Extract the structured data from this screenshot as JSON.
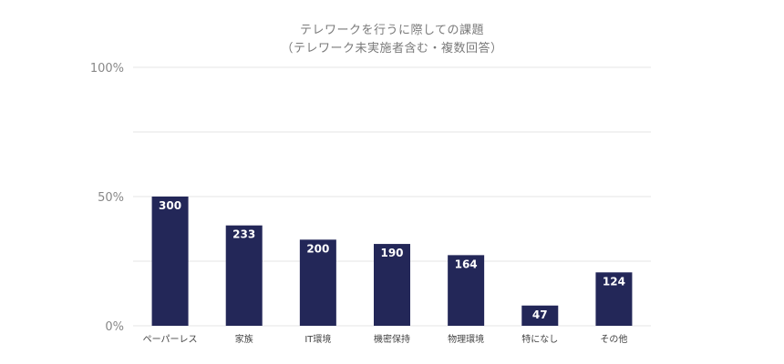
{
  "chart_data": {
    "type": "bar",
    "title": "テレワークを行うに際しての課題",
    "subtitle": "（テレワーク未実施者含む・複数回答）",
    "categories": [
      "ペーパーレス",
      "家族",
      "IT環境",
      "機密保持",
      "物理環境",
      "特になし",
      "その他"
    ],
    "values": [
      300,
      233,
      200,
      190,
      164,
      47,
      124
    ],
    "y_axis_percent_ticks": [
      "0%",
      "50%",
      "100%"
    ],
    "y_axis_max_value": 600,
    "grid": true,
    "xlabel": "",
    "ylabel": "",
    "colors": {
      "bar": "#232758",
      "bar_label": "#ffffff",
      "grid": "#e6e6e6",
      "axis_text": "#888888",
      "title": "#7a7a7a"
    }
  }
}
